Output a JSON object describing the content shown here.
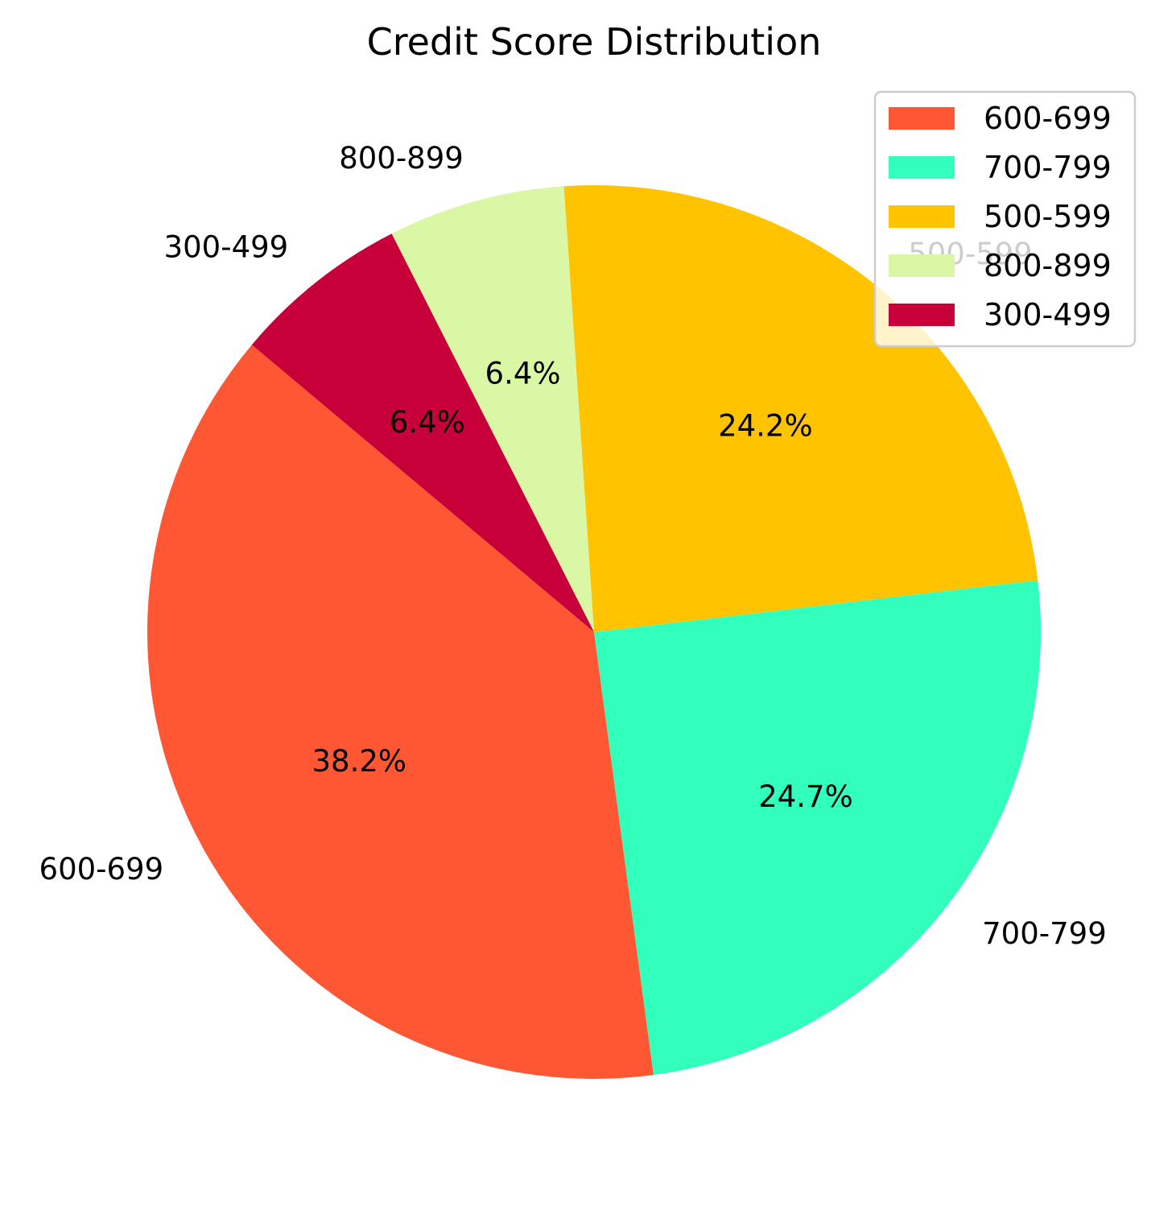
{
  "chart_data": {
    "type": "pie",
    "title": "Credit Score Distribution",
    "categories": [
      "600-699",
      "700-799",
      "500-599",
      "800-899",
      "300-499"
    ],
    "values": [
      38.2,
      24.7,
      24.2,
      6.4,
      6.4
    ],
    "percent_labels": [
      "38.2%",
      "24.7%",
      "24.2%",
      "6.4%",
      "6.4%"
    ],
    "colors": [
      "#ff5733",
      "#33ffbd",
      "#ffc300",
      "#daf7a6",
      "#c70039"
    ],
    "start_angle_deg": 140,
    "direction": "counterclockwise",
    "legend": {
      "placement": "top-right",
      "entries": [
        "600-699",
        "700-799",
        "500-599",
        "800-899",
        "300-499"
      ]
    }
  }
}
